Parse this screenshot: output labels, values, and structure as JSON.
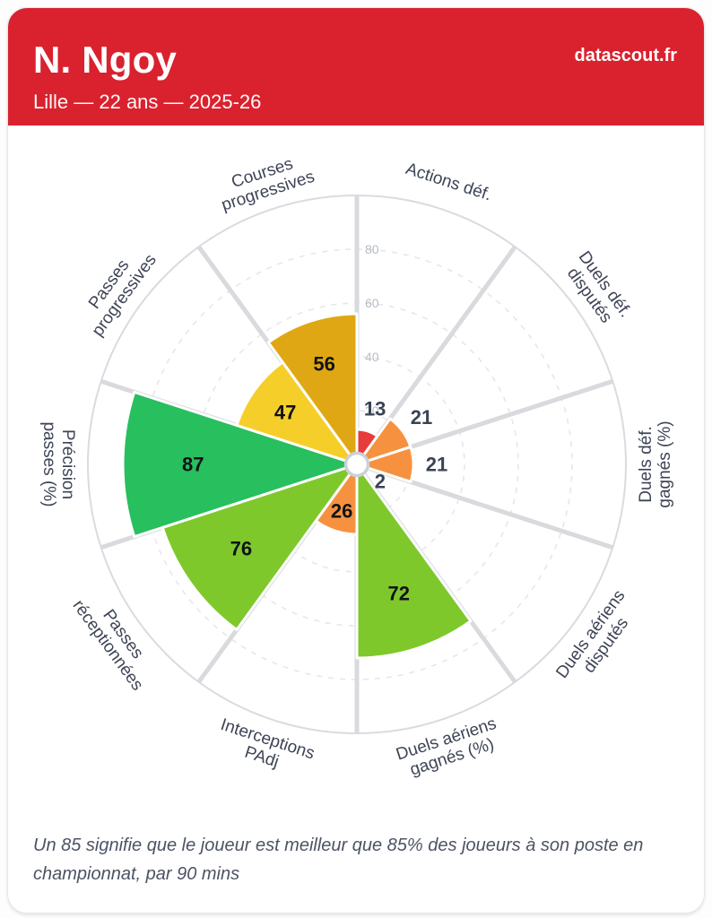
{
  "header": {
    "player_name": "N. Ngoy",
    "meta": "Lille — 22 ans — 2025-26",
    "brand": "datascout.fr",
    "background_color": "#da212e"
  },
  "footer": {
    "note": "Un 85 signifie que le joueur est meilleur que 85% des joueurs à son poste en championnat, par 90 mins"
  },
  "chart_data": {
    "type": "pizza",
    "title": "N. Ngoy — Lille — 22 ans — 2025-26",
    "rlim": [
      0,
      100
    ],
    "ticks": [
      20,
      40,
      60,
      80
    ],
    "grid": "dashed concentric circles, solid outer ring, gray spokes",
    "legend_position": "none",
    "slices": [
      {
        "label": "Actions déf.",
        "label_lines": [
          "Actions déf."
        ],
        "value": 13,
        "color": "#e83b3b"
      },
      {
        "label": "Duels déf. disputés",
        "label_lines": [
          "Duels déf.",
          "disputés"
        ],
        "value": 21,
        "color": "#f6923f"
      },
      {
        "label": "Duels déf. gagnés (%)",
        "label_lines": [
          "Duels déf.",
          "gagnés (%)"
        ],
        "value": 21,
        "color": "#f6923f"
      },
      {
        "label": "Duels aériens disputés",
        "label_lines": [
          "Duels aériens",
          "disputés"
        ],
        "value": 2,
        "color": "#f6923f"
      },
      {
        "label": "Duels aériens gagnés (%)",
        "label_lines": [
          "Duels aériens",
          "gagnés (%)"
        ],
        "value": 72,
        "color": "#7ec82c"
      },
      {
        "label": "Interceptions PAdj",
        "label_lines": [
          "Interceptions",
          "PAdj"
        ],
        "value": 26,
        "color": "#f6923f"
      },
      {
        "label": "Passes réceptionnées",
        "label_lines": [
          "Passes",
          "réceptionnées"
        ],
        "value": 76,
        "color": "#7ec82c"
      },
      {
        "label": "Précision passes (%)",
        "label_lines": [
          "Précision",
          "passes (%)"
        ],
        "value": 87,
        "color": "#28bf5e"
      },
      {
        "label": "Passes progressives",
        "label_lines": [
          "Passes",
          "progressives"
        ],
        "value": 47,
        "color": "#f6ce29"
      },
      {
        "label": "Courses progressives",
        "label_lines": [
          "Courses",
          "progressives"
        ],
        "value": 56,
        "color": "#dfa713"
      }
    ],
    "style_colors": {
      "category_label": "#3d4456",
      "value_inside": "#101217",
      "value_outside": "#3a4254",
      "tick_label": "#b6bbc5",
      "spoke": "#d9dade",
      "dashed_grid": "#e6e7eb",
      "outer_ring": "#d9dbe0",
      "center_dot_ring": "#ccd0d7"
    }
  }
}
